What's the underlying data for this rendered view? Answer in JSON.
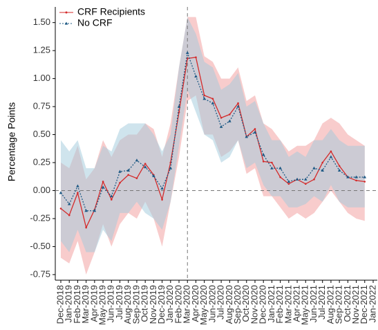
{
  "chart_data": {
    "type": "line",
    "y_label": "Percentage Points",
    "categories": [
      "Dec-2018",
      "Jan-2019",
      "Feb-2019",
      "Mar-2019",
      "Apr-2019",
      "May-2019",
      "Jun-2019",
      "Jul-2019",
      "Aug-2019",
      "Sep-2019",
      "Oct-2019",
      "Nov-2019",
      "Dec-2019",
      "Jan-2020",
      "Feb-2020",
      "Mar-2020",
      "Apr-2020",
      "May-2020",
      "Jun-2020",
      "Jul-2020",
      "Aug-2020",
      "Sep-2020",
      "Oct-2020",
      "Nov-2020",
      "Dec-2020",
      "Jan-2021",
      "Feb-2021",
      "Mar-2021",
      "Apr-2021",
      "May-2021",
      "Jun-2021",
      "Jul-2021",
      "Aug-2021",
      "Sep-2021",
      "Oct-2021",
      "Nov-2021",
      "Dec-2021",
      "Jan-2022"
    ],
    "series": [
      {
        "name": "CRF Recipients",
        "color": "#d42a2a",
        "band_color": "#f19a9a",
        "dash": false,
        "marker": "dot",
        "values": [
          -0.16,
          -0.22,
          -0.02,
          -0.33,
          -0.17,
          0.08,
          -0.08,
          0.07,
          0.14,
          0.11,
          0.24,
          0.14,
          -0.08,
          0.25,
          0.7,
          1.18,
          1.19,
          0.85,
          0.82,
          0.65,
          0.68,
          0.78,
          0.48,
          0.55,
          0.26,
          0.25,
          0.12,
          0.06,
          0.1,
          0.06,
          0.1,
          0.25,
          0.35,
          0.22,
          0.12,
          0.09,
          0.08,
          null
        ],
        "upper": [
          0.25,
          0.2,
          0.4,
          0.1,
          0.2,
          0.45,
          0.3,
          0.45,
          0.5,
          0.5,
          0.6,
          0.55,
          0.3,
          0.6,
          1.1,
          1.55,
          1.55,
          1.2,
          1.15,
          1.0,
          1.0,
          1.1,
          0.8,
          0.85,
          0.6,
          0.55,
          0.45,
          0.35,
          0.4,
          0.4,
          0.45,
          0.6,
          0.65,
          0.6,
          0.5,
          0.45,
          0.4,
          null
        ],
        "lower": [
          -0.6,
          -0.65,
          -0.45,
          -0.75,
          -0.55,
          -0.3,
          -0.5,
          -0.3,
          -0.2,
          -0.25,
          -0.1,
          -0.25,
          -0.5,
          -0.1,
          0.3,
          0.8,
          0.85,
          0.5,
          0.5,
          0.3,
          0.35,
          0.45,
          0.15,
          0.2,
          -0.05,
          -0.05,
          -0.15,
          -0.25,
          -0.2,
          -0.25,
          -0.2,
          -0.1,
          0.0,
          -0.1,
          -0.2,
          -0.25,
          -0.27,
          null
        ]
      },
      {
        "name": "No CRF",
        "color": "#1f5a85",
        "band_color": "#9fcadb",
        "dash": true,
        "marker": "triangle",
        "values": [
          -0.02,
          -0.12,
          0.04,
          -0.18,
          -0.18,
          0.03,
          -0.05,
          0.17,
          0.18,
          0.27,
          0.21,
          0.13,
          0.02,
          0.2,
          0.75,
          1.23,
          1.02,
          0.82,
          0.78,
          0.57,
          0.62,
          0.75,
          0.48,
          0.52,
          0.32,
          0.2,
          0.2,
          0.08,
          0.1,
          0.1,
          0.2,
          0.18,
          0.3,
          0.18,
          0.12,
          0.12,
          0.12,
          null
        ],
        "upper": [
          0.45,
          0.35,
          0.45,
          0.2,
          0.2,
          0.4,
          0.35,
          0.55,
          0.6,
          0.6,
          0.6,
          0.5,
          0.35,
          0.5,
          1.1,
          1.55,
          1.4,
          1.15,
          1.1,
          0.9,
          0.95,
          1.05,
          0.75,
          0.8,
          0.6,
          0.45,
          0.45,
          0.3,
          0.35,
          0.3,
          0.45,
          0.45,
          0.55,
          0.45,
          0.4,
          0.4,
          0.4,
          null
        ],
        "lower": [
          -0.45,
          -0.55,
          -0.35,
          -0.55,
          -0.55,
          -0.35,
          -0.45,
          -0.2,
          -0.2,
          -0.1,
          -0.2,
          -0.25,
          -0.35,
          -0.1,
          0.4,
          0.9,
          0.7,
          0.5,
          0.45,
          0.25,
          0.3,
          0.45,
          0.2,
          0.25,
          0.05,
          -0.05,
          -0.05,
          -0.15,
          -0.15,
          -0.12,
          -0.05,
          -0.1,
          0.05,
          -0.1,
          -0.15,
          -0.15,
          -0.15,
          null
        ]
      }
    ],
    "ylim": [
      -0.8,
      1.64
    ],
    "yticks": [
      {
        "value": -0.75,
        "label": "-0.75"
      },
      {
        "value": -0.5,
        "label": "-0.50"
      },
      {
        "value": -0.25,
        "label": "-0.25"
      },
      {
        "value": 0,
        "label": "0.00"
      },
      {
        "value": 0.25,
        "label": "0.25"
      },
      {
        "value": 0.5,
        "label": "0.50"
      },
      {
        "value": 0.75,
        "label": "0.75"
      },
      {
        "value": 1,
        "label": "1.00"
      },
      {
        "value": 1.25,
        "label": "1.25"
      },
      {
        "value": 1.5,
        "label": "1.50"
      }
    ],
    "hline": 0,
    "vline": "Mar-2020",
    "legend": "top-left",
    "grid": false
  }
}
